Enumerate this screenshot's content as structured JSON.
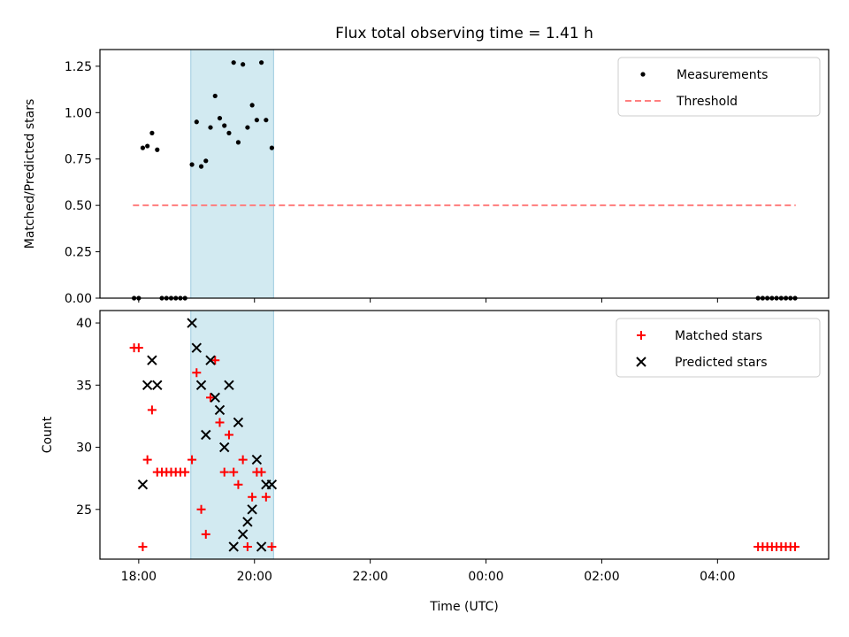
{
  "chart_data": {
    "title": "Flux total observing time = 1.41 h",
    "xlabel": "Time (UTC)",
    "xticks": [
      "18:00",
      "20:00",
      "22:00",
      "00:00",
      "02:00",
      "04:00"
    ],
    "shaded_span_hours": [
      18.9,
      20.33
    ],
    "panels": [
      {
        "type": "scatter",
        "ylabel": "Matched/Predicted stars",
        "ylim": [
          0,
          1.34
        ],
        "yticks": [
          "0.00",
          "0.25",
          "0.50",
          "0.75",
          "1.00",
          "1.25"
        ],
        "ytick_values": [
          0,
          0.25,
          0.5,
          0.75,
          1.0,
          1.25
        ],
        "legend": "top-right",
        "series": [
          {
            "name": "Measurements",
            "color": "#000000",
            "marker": "dot",
            "points": [
              [
                17.92,
                0.0
              ],
              [
                18.0,
                0.0
              ],
              [
                18.07,
                0.81
              ],
              [
                18.15,
                0.82
              ],
              [
                18.23,
                0.89
              ],
              [
                18.32,
                0.8
              ],
              [
                18.4,
                0.0
              ],
              [
                18.48,
                0.0
              ],
              [
                18.56,
                0.0
              ],
              [
                18.64,
                0.0
              ],
              [
                18.72,
                0.0
              ],
              [
                18.8,
                0.0
              ],
              [
                18.92,
                0.72
              ],
              [
                19.0,
                0.95
              ],
              [
                19.08,
                0.71
              ],
              [
                19.16,
                0.74
              ],
              [
                19.24,
                0.92
              ],
              [
                19.32,
                1.09
              ],
              [
                19.4,
                0.97
              ],
              [
                19.48,
                0.93
              ],
              [
                19.56,
                0.89
              ],
              [
                19.64,
                1.27
              ],
              [
                19.72,
                0.84
              ],
              [
                19.8,
                1.26
              ],
              [
                19.88,
                0.92
              ],
              [
                19.96,
                1.04
              ],
              [
                20.04,
                0.96
              ],
              [
                20.12,
                1.27
              ],
              [
                20.2,
                0.96
              ],
              [
                20.3,
                0.81
              ],
              [
                28.7,
                0.0
              ],
              [
                28.78,
                0.0
              ],
              [
                28.86,
                0.0
              ],
              [
                28.94,
                0.0
              ],
              [
                29.02,
                0.0
              ],
              [
                29.1,
                0.0
              ],
              [
                29.18,
                0.0
              ],
              [
                29.26,
                0.0
              ],
              [
                29.34,
                0.0
              ]
            ]
          },
          {
            "name": "Threshold",
            "color": "#ff7f7f",
            "style": "dashed",
            "points": [
              [
                17.9,
                0.5
              ],
              [
                29.35,
                0.5
              ]
            ]
          }
        ]
      },
      {
        "type": "scatter",
        "ylabel": "Count",
        "ylim": [
          21,
          41
        ],
        "yticks": [
          "25",
          "30",
          "35",
          "40"
        ],
        "ytick_values": [
          25,
          30,
          35,
          40
        ],
        "legend": "top-right",
        "series": [
          {
            "name": "Matched stars",
            "color": "#ff0000",
            "marker": "plus",
            "points": [
              [
                17.92,
                38
              ],
              [
                18.0,
                38
              ],
              [
                18.07,
                22
              ],
              [
                18.15,
                29
              ],
              [
                18.23,
                33
              ],
              [
                18.32,
                28
              ],
              [
                18.4,
                28
              ],
              [
                18.48,
                28
              ],
              [
                18.56,
                28
              ],
              [
                18.64,
                28
              ],
              [
                18.72,
                28
              ],
              [
                18.8,
                28
              ],
              [
                18.92,
                29
              ],
              [
                19.0,
                36
              ],
              [
                19.08,
                25
              ],
              [
                19.16,
                23
              ],
              [
                19.24,
                34
              ],
              [
                19.32,
                37
              ],
              [
                19.4,
                32
              ],
              [
                19.48,
                28
              ],
              [
                19.56,
                31
              ],
              [
                19.64,
                28
              ],
              [
                19.72,
                27
              ],
              [
                19.8,
                29
              ],
              [
                19.88,
                22
              ],
              [
                19.96,
                26
              ],
              [
                20.04,
                28
              ],
              [
                20.12,
                28
              ],
              [
                20.2,
                26
              ],
              [
                20.3,
                22
              ],
              [
                28.7,
                22
              ],
              [
                28.78,
                22
              ],
              [
                28.86,
                22
              ],
              [
                28.94,
                22
              ],
              [
                29.02,
                22
              ],
              [
                29.1,
                22
              ],
              [
                29.18,
                22
              ],
              [
                29.26,
                22
              ],
              [
                29.34,
                22
              ]
            ]
          },
          {
            "name": "Predicted stars",
            "color": "#000000",
            "marker": "x",
            "points": [
              [
                18.07,
                27
              ],
              [
                18.15,
                35
              ],
              [
                18.23,
                37
              ],
              [
                18.32,
                35
              ],
              [
                18.92,
                40
              ],
              [
                19.0,
                38
              ],
              [
                19.08,
                35
              ],
              [
                19.16,
                31
              ],
              [
                19.24,
                37
              ],
              [
                19.32,
                34
              ],
              [
                19.4,
                33
              ],
              [
                19.48,
                30
              ],
              [
                19.56,
                35
              ],
              [
                19.64,
                22
              ],
              [
                19.72,
                32
              ],
              [
                19.8,
                23
              ],
              [
                19.88,
                24
              ],
              [
                19.96,
                25
              ],
              [
                20.04,
                29
              ],
              [
                20.12,
                22
              ],
              [
                20.2,
                27
              ],
              [
                20.3,
                27
              ]
            ]
          }
        ]
      }
    ]
  }
}
